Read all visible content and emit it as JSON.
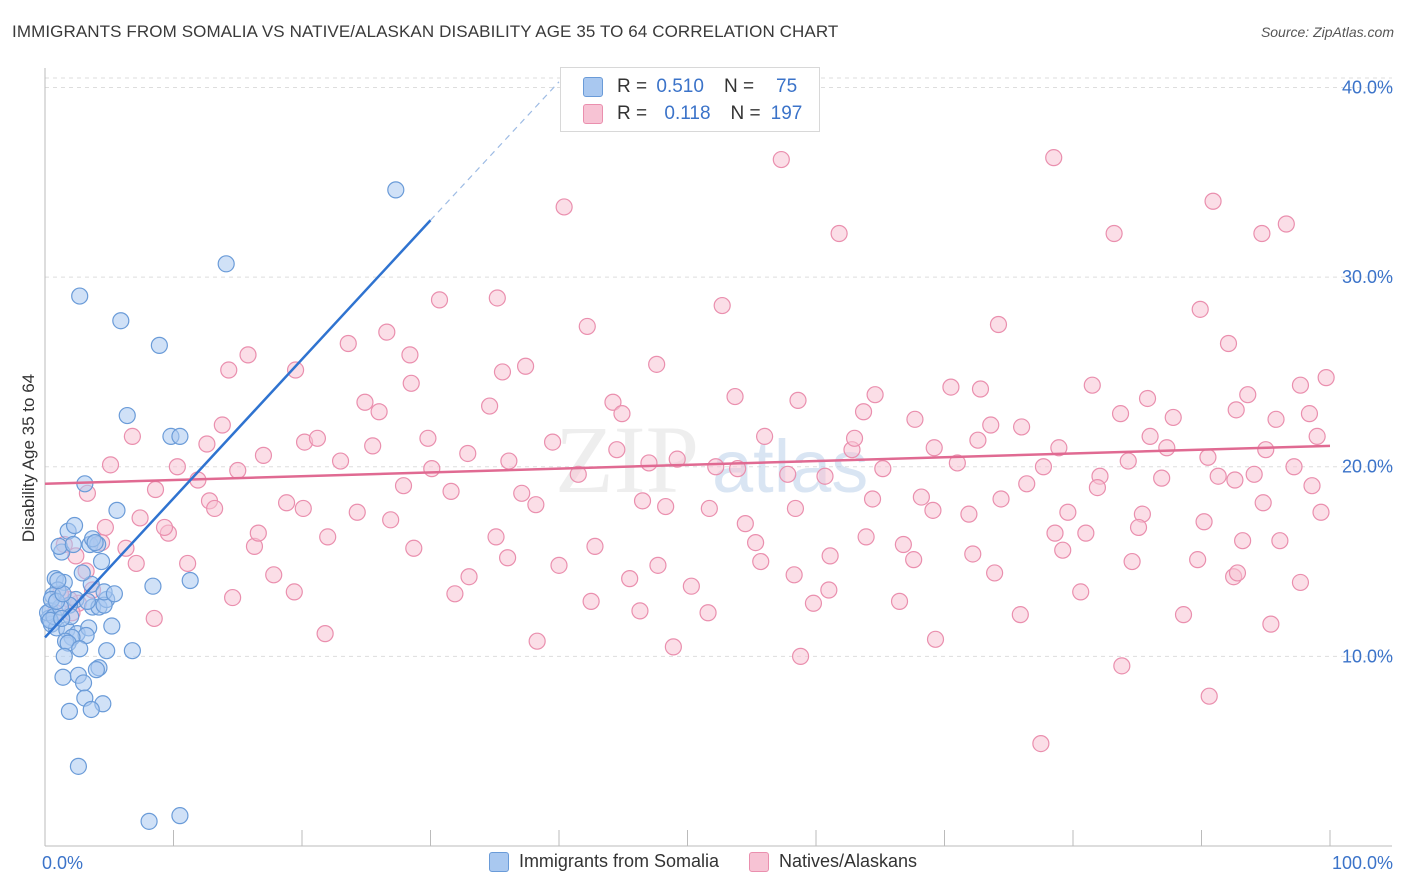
{
  "title": "IMMIGRANTS FROM SOMALIA VS NATIVE/ALASKAN DISABILITY AGE 35 TO 64 CORRELATION CHART",
  "source": "Source: ZipAtlas.com",
  "watermark": {
    "zip": "ZIP",
    "atlas": "atlas"
  },
  "legend_box": {
    "rows": [
      {
        "r_label": "R =",
        "r_value": "0.510",
        "n_label": "N =",
        "n_value": "75"
      },
      {
        "r_label": "R =",
        "r_value": "0.118",
        "n_label": "N =",
        "n_value": "197"
      }
    ]
  },
  "bottom_legend": {
    "series_a": "Immigrants from Somalia",
    "series_b": "Natives/Alaskans"
  },
  "colors": {
    "blue_fill": "#a9c8f0",
    "blue_stroke": "#6a9bd8",
    "blue_line": "#2f73d0",
    "pink_fill": "#f7c3d4",
    "pink_stroke": "#ea8fae",
    "pink_line": "#e06a92",
    "axis_text": "#3b73c9",
    "grid": "#dddddd"
  },
  "chart_data": {
    "type": "scatter",
    "xlabel": "",
    "ylabel": "Disability Age 35 to 64",
    "xlim": [
      0,
      100
    ],
    "ylim": [
      0,
      40.5
    ],
    "x_tick_labels": [
      "0.0%",
      "100.0%"
    ],
    "y_ticks": [
      10,
      20,
      30,
      40
    ],
    "y_tick_labels": [
      "10.0%",
      "20.0%",
      "30.0%",
      "40.0%"
    ],
    "legend_position": "top-center",
    "series": [
      {
        "name": "Immigrants from Somalia",
        "r": 0.51,
        "n": 75,
        "trend": {
          "x0": 0,
          "y0": 11.0,
          "x1": 30,
          "y1": 33.0,
          "dash_to_x": 40,
          "dash_to_y": 40.3
        },
        "points": [
          [
            2.7,
            29.0
          ],
          [
            5.9,
            27.7
          ],
          [
            8.9,
            26.4
          ],
          [
            14.1,
            30.7
          ],
          [
            27.3,
            34.6
          ],
          [
            6.4,
            22.7
          ],
          [
            9.8,
            21.6
          ],
          [
            10.5,
            21.6
          ],
          [
            3.1,
            19.1
          ],
          [
            5.6,
            17.7
          ],
          [
            1.8,
            16.6
          ],
          [
            2.3,
            16.9
          ],
          [
            3.5,
            15.9
          ],
          [
            1.3,
            15.5
          ],
          [
            1.1,
            15.8
          ],
          [
            4.1,
            15.9
          ],
          [
            3.7,
            16.2
          ],
          [
            4.4,
            15.0
          ],
          [
            8.4,
            13.7
          ],
          [
            11.3,
            14.0
          ],
          [
            0.8,
            14.1
          ],
          [
            1.5,
            13.9
          ],
          [
            1.0,
            13.5
          ],
          [
            3.6,
            13.8
          ],
          [
            0.6,
            13.2
          ],
          [
            2.4,
            13.0
          ],
          [
            1.9,
            12.7
          ],
          [
            3.7,
            12.6
          ],
          [
            4.2,
            12.6
          ],
          [
            4.8,
            13.0
          ],
          [
            4.6,
            12.7
          ],
          [
            0.4,
            12.4
          ],
          [
            0.3,
            12.0
          ],
          [
            0.5,
            11.7
          ],
          [
            0.9,
            11.5
          ],
          [
            1.7,
            11.4
          ],
          [
            2.5,
            11.2
          ],
          [
            3.4,
            11.5
          ],
          [
            3.2,
            11.1
          ],
          [
            2.1,
            11.0
          ],
          [
            1.6,
            10.8
          ],
          [
            1.8,
            10.7
          ],
          [
            5.2,
            11.6
          ],
          [
            4.8,
            10.3
          ],
          [
            2.7,
            10.4
          ],
          [
            1.5,
            10.0
          ],
          [
            4.2,
            9.4
          ],
          [
            4.0,
            9.3
          ],
          [
            1.4,
            8.9
          ],
          [
            2.6,
            9.0
          ],
          [
            3.0,
            8.6
          ],
          [
            3.1,
            7.8
          ],
          [
            4.5,
            7.5
          ],
          [
            3.6,
            7.2
          ],
          [
            1.9,
            7.1
          ],
          [
            2.6,
            4.2
          ],
          [
            8.1,
            1.3
          ],
          [
            10.5,
            1.6
          ],
          [
            0.2,
            12.3
          ],
          [
            0.7,
            12.1
          ],
          [
            1.2,
            12.6
          ],
          [
            2.9,
            14.4
          ],
          [
            0.5,
            13.0
          ],
          [
            2.0,
            12.1
          ],
          [
            3.3,
            12.9
          ],
          [
            0.9,
            12.9
          ],
          [
            1.4,
            13.3
          ],
          [
            4.6,
            13.4
          ],
          [
            5.4,
            13.3
          ],
          [
            3.9,
            16.0
          ],
          [
            2.2,
            15.9
          ],
          [
            1.0,
            14.0
          ],
          [
            0.4,
            11.9
          ],
          [
            6.8,
            10.3
          ],
          [
            1.3,
            12.0
          ]
        ]
      },
      {
        "name": "Natives/Alaskans",
        "r": 0.118,
        "n": 197,
        "trend": {
          "x0": 0,
          "y0": 19.1,
          "x1": 100,
          "y1": 21.1
        },
        "points": [
          [
            57.3,
            36.2
          ],
          [
            78.5,
            36.3
          ],
          [
            40.4,
            33.7
          ],
          [
            61.8,
            32.3
          ],
          [
            83.2,
            32.3
          ],
          [
            90.9,
            34.0
          ],
          [
            96.6,
            32.8
          ],
          [
            94.7,
            32.3
          ],
          [
            30.7,
            28.8
          ],
          [
            35.2,
            28.9
          ],
          [
            52.7,
            28.5
          ],
          [
            74.2,
            27.5
          ],
          [
            89.9,
            28.3
          ],
          [
            42.2,
            27.4
          ],
          [
            26.6,
            27.1
          ],
          [
            23.6,
            26.5
          ],
          [
            15.8,
            25.9
          ],
          [
            28.4,
            25.9
          ],
          [
            19.5,
            25.1
          ],
          [
            14.3,
            25.1
          ],
          [
            37.4,
            25.3
          ],
          [
            35.6,
            25.0
          ],
          [
            47.6,
            25.4
          ],
          [
            92.1,
            26.5
          ],
          [
            64.6,
            23.8
          ],
          [
            70.5,
            24.2
          ],
          [
            81.5,
            24.3
          ],
          [
            72.8,
            24.1
          ],
          [
            85.8,
            23.6
          ],
          [
            99.7,
            24.7
          ],
          [
            93.6,
            23.8
          ],
          [
            97.7,
            24.3
          ],
          [
            13.8,
            22.2
          ],
          [
            20.2,
            21.3
          ],
          [
            26.0,
            22.9
          ],
          [
            28.5,
            24.4
          ],
          [
            34.6,
            23.2
          ],
          [
            44.2,
            23.4
          ],
          [
            53.7,
            23.7
          ],
          [
            58.6,
            23.5
          ],
          [
            63.7,
            22.9
          ],
          [
            67.7,
            22.5
          ],
          [
            76.0,
            22.1
          ],
          [
            83.7,
            22.8
          ],
          [
            87.8,
            22.6
          ],
          [
            92.7,
            23.0
          ],
          [
            95.8,
            22.5
          ],
          [
            98.4,
            22.8
          ],
          [
            6.8,
            21.6
          ],
          [
            12.6,
            21.2
          ],
          [
            17.0,
            20.6
          ],
          [
            21.2,
            21.5
          ],
          [
            25.5,
            21.1
          ],
          [
            29.8,
            21.5
          ],
          [
            32.9,
            20.7
          ],
          [
            39.5,
            21.3
          ],
          [
            44.5,
            20.9
          ],
          [
            49.2,
            20.4
          ],
          [
            56.0,
            21.6
          ],
          [
            62.8,
            20.9
          ],
          [
            69.2,
            21.0
          ],
          [
            73.6,
            22.2
          ],
          [
            78.9,
            21.0
          ],
          [
            84.3,
            20.3
          ],
          [
            90.5,
            20.5
          ],
          [
            95.0,
            20.9
          ],
          [
            99.0,
            21.6
          ],
          [
            5.1,
            20.1
          ],
          [
            10.3,
            20.0
          ],
          [
            15.0,
            19.8
          ],
          [
            23.0,
            20.3
          ],
          [
            30.1,
            19.9
          ],
          [
            36.1,
            20.3
          ],
          [
            41.5,
            19.6
          ],
          [
            47.0,
            20.2
          ],
          [
            52.2,
            20.0
          ],
          [
            57.8,
            19.6
          ],
          [
            65.2,
            19.9
          ],
          [
            71.0,
            20.2
          ],
          [
            77.7,
            20.0
          ],
          [
            82.1,
            19.5
          ],
          [
            86.9,
            19.4
          ],
          [
            92.6,
            19.3
          ],
          [
            97.2,
            20.0
          ],
          [
            3.3,
            18.6
          ],
          [
            8.6,
            18.8
          ],
          [
            12.8,
            18.2
          ],
          [
            18.8,
            18.1
          ],
          [
            24.3,
            17.6
          ],
          [
            31.6,
            18.7
          ],
          [
            38.2,
            18.0
          ],
          [
            46.5,
            18.2
          ],
          [
            51.7,
            17.8
          ],
          [
            58.4,
            17.8
          ],
          [
            64.4,
            18.3
          ],
          [
            69.1,
            17.7
          ],
          [
            74.4,
            18.3
          ],
          [
            79.6,
            17.6
          ],
          [
            85.4,
            17.5
          ],
          [
            90.2,
            17.1
          ],
          [
            94.8,
            18.1
          ],
          [
            99.3,
            17.6
          ],
          [
            4.7,
            16.8
          ],
          [
            9.6,
            16.5
          ],
          [
            16.3,
            15.8
          ],
          [
            22.0,
            16.3
          ],
          [
            28.7,
            15.7
          ],
          [
            36.0,
            15.2
          ],
          [
            42.8,
            15.8
          ],
          [
            47.7,
            14.8
          ],
          [
            55.3,
            16.0
          ],
          [
            61.1,
            15.3
          ],
          [
            66.8,
            15.9
          ],
          [
            72.2,
            15.4
          ],
          [
            78.6,
            16.5
          ],
          [
            81.0,
            16.5
          ],
          [
            89.7,
            15.1
          ],
          [
            93.2,
            16.1
          ],
          [
            96.1,
            16.1
          ],
          [
            2.4,
            15.3
          ],
          [
            7.1,
            14.9
          ],
          [
            11.1,
            14.9
          ],
          [
            17.8,
            14.3
          ],
          [
            33.0,
            14.2
          ],
          [
            40.0,
            14.8
          ],
          [
            45.5,
            14.1
          ],
          [
            50.3,
            13.7
          ],
          [
            58.3,
            14.3
          ],
          [
            67.6,
            15.1
          ],
          [
            73.9,
            14.4
          ],
          [
            80.6,
            13.4
          ],
          [
            84.6,
            15.0
          ],
          [
            92.5,
            14.2
          ],
          [
            97.7,
            13.9
          ],
          [
            3.7,
            13.5
          ],
          [
            14.6,
            13.1
          ],
          [
            19.4,
            13.4
          ],
          [
            31.9,
            13.3
          ],
          [
            42.5,
            12.9
          ],
          [
            46.3,
            12.4
          ],
          [
            51.6,
            12.3
          ],
          [
            59.8,
            12.8
          ],
          [
            66.5,
            12.9
          ],
          [
            75.9,
            12.2
          ],
          [
            88.6,
            12.2
          ],
          [
            95.4,
            11.7
          ],
          [
            2.6,
            12.8
          ],
          [
            8.5,
            12.0
          ],
          [
            21.8,
            11.2
          ],
          [
            38.3,
            10.8
          ],
          [
            48.9,
            10.5
          ],
          [
            58.8,
            10.0
          ],
          [
            69.3,
            10.9
          ],
          [
            83.8,
            9.5
          ],
          [
            90.6,
            7.9
          ],
          [
            77.5,
            5.4
          ],
          [
            61.0,
            13.5
          ],
          [
            54.5,
            17.0
          ],
          [
            63.0,
            21.5
          ],
          [
            86.0,
            21.6
          ],
          [
            1.5,
            15.9
          ],
          [
            3.2,
            14.5
          ],
          [
            1.9,
            13.0
          ],
          [
            0.8,
            12.3
          ],
          [
            4.4,
            16.0
          ],
          [
            6.3,
            15.7
          ],
          [
            2.1,
            12.3
          ],
          [
            1.2,
            13.3
          ],
          [
            11.9,
            19.3
          ],
          [
            20.1,
            17.8
          ],
          [
            27.9,
            19.0
          ],
          [
            35.1,
            16.3
          ],
          [
            48.3,
            17.9
          ],
          [
            53.9,
            19.9
          ],
          [
            60.7,
            19.5
          ],
          [
            68.2,
            18.4
          ],
          [
            72.6,
            21.4
          ],
          [
            76.4,
            19.1
          ],
          [
            81.9,
            18.9
          ],
          [
            87.3,
            21.0
          ],
          [
            91.3,
            19.5
          ],
          [
            94.1,
            19.6
          ],
          [
            98.6,
            19.0
          ],
          [
            44.9,
            22.8
          ],
          [
            37.1,
            18.6
          ],
          [
            26.9,
            17.2
          ],
          [
            16.6,
            16.5
          ],
          [
            9.3,
            16.8
          ],
          [
            55.7,
            15.0
          ],
          [
            63.9,
            16.3
          ],
          [
            71.9,
            17.5
          ],
          [
            79.2,
            15.6
          ],
          [
            85.1,
            16.8
          ],
          [
            92.8,
            14.4
          ],
          [
            7.4,
            17.3
          ],
          [
            13.2,
            17.8
          ],
          [
            24.9,
            23.4
          ]
        ]
      }
    ]
  }
}
